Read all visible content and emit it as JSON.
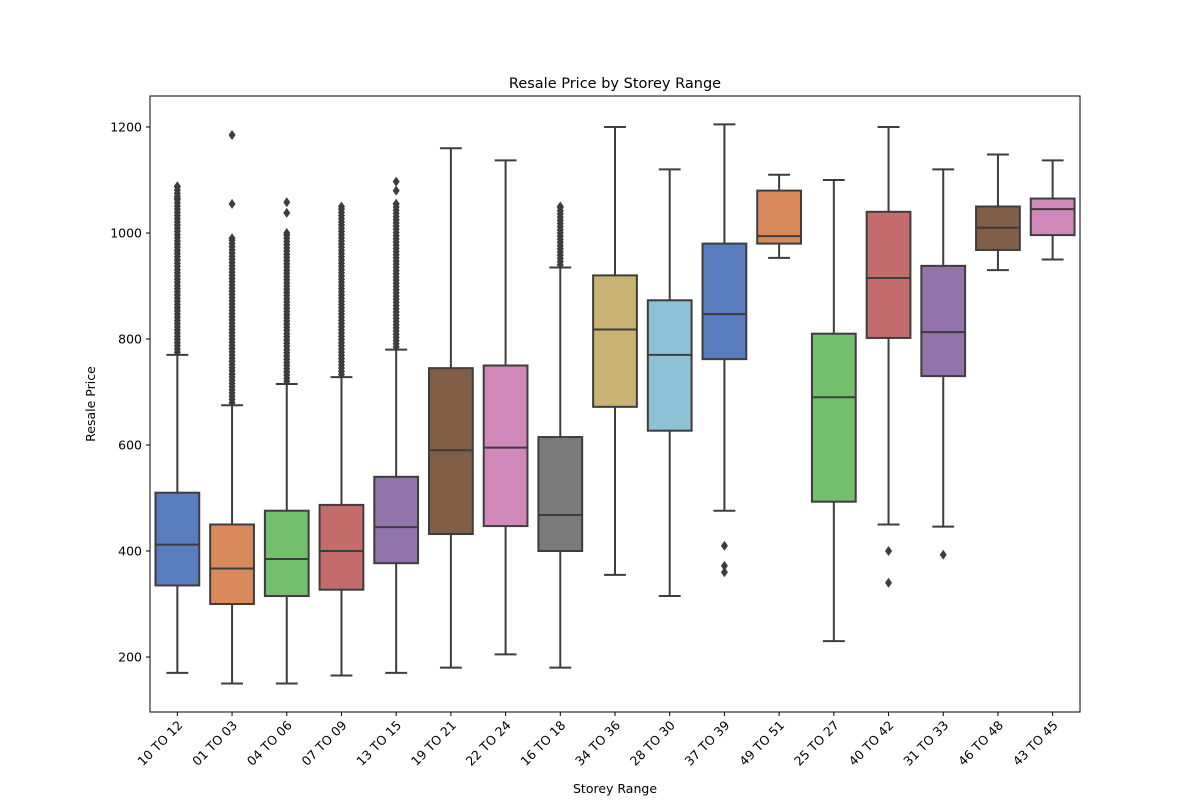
{
  "chart_data": {
    "type": "box",
    "title": "Resale Price by Storey Range",
    "xlabel": "Storey Range",
    "ylabel": "Resale Price",
    "ylim": [
      95,
      1258
    ],
    "yticks": [
      200,
      400,
      600,
      800,
      1000,
      1200
    ],
    "grid": false,
    "categories": [
      "10 TO 12",
      "01 TO 03",
      "04 TO 06",
      "07 TO 09",
      "13 TO 15",
      "19 TO 21",
      "22 TO 24",
      "16 TO 18",
      "34 TO 36",
      "28 TO 30",
      "37 TO 39",
      "49 TO 51",
      "25 TO 27",
      "40 TO 42",
      "31 TO 33",
      "46 TO 48",
      "43 TO 45"
    ],
    "boxes": [
      {
        "min": 170,
        "q1": 335,
        "median": 412,
        "q3": 510,
        "max": 770,
        "outlier_range": [
          775,
          1088
        ],
        "outliers": [
          1065,
          1088
        ],
        "color": "#5a7dbf"
      },
      {
        "min": 150,
        "q1": 300,
        "median": 367,
        "q3": 450,
        "max": 675,
        "outlier_range": [
          680,
          990
        ],
        "outliers": [
          1055,
          1185
        ],
        "color": "#d98a5c"
      },
      {
        "min": 150,
        "q1": 315,
        "median": 385,
        "q3": 476,
        "max": 715,
        "outlier_range": [
          720,
          1000
        ],
        "outliers": [
          1038,
          1058
        ],
        "color": "#73bf6e"
      },
      {
        "min": 165,
        "q1": 327,
        "median": 400,
        "q3": 487,
        "max": 728,
        "outlier_range": [
          733,
          1050
        ],
        "outliers": [],
        "color": "#c46c6c"
      },
      {
        "min": 170,
        "q1": 377,
        "median": 445,
        "q3": 540,
        "max": 780,
        "outlier_range": [
          785,
          1055
        ],
        "outliers": [
          1080,
          1097
        ],
        "color": "#9274ab"
      },
      {
        "min": 180,
        "q1": 432,
        "median": 590,
        "q3": 745,
        "max": 1160,
        "outlier_range": null,
        "outliers": [],
        "color": "#805f46"
      },
      {
        "min": 205,
        "q1": 447,
        "median": 595,
        "q3": 750,
        "max": 1137,
        "outlier_range": null,
        "outliers": [],
        "color": "#d088ba"
      },
      {
        "min": 180,
        "q1": 400,
        "median": 468,
        "q3": 615,
        "max": 935,
        "outlier_range": [
          940,
          1050
        ],
        "outliers": [],
        "color": "#7a7a7a"
      },
      {
        "min": 355,
        "q1": 672,
        "median": 818,
        "q3": 920,
        "max": 1200,
        "outlier_range": null,
        "outliers": [],
        "color": "#c8b274"
      },
      {
        "min": 315,
        "q1": 627,
        "median": 770,
        "q3": 873,
        "max": 1120,
        "outlier_range": null,
        "outliers": [],
        "color": "#8ec0d6"
      },
      {
        "min": 476,
        "q1": 762,
        "median": 847,
        "q3": 980,
        "max": 1205,
        "outlier_range": null,
        "outliers": [
          410,
          372,
          360
        ],
        "color": "#5a7dbf"
      },
      {
        "min": 953,
        "q1": 980,
        "median": 994,
        "q3": 1080,
        "max": 1110,
        "outlier_range": null,
        "outliers": [],
        "color": "#d98a5c"
      },
      {
        "min": 230,
        "q1": 493,
        "median": 690,
        "q3": 810,
        "max": 1100,
        "outlier_range": null,
        "outliers": [],
        "color": "#73bf6e"
      },
      {
        "min": 450,
        "q1": 802,
        "median": 915,
        "q3": 1040,
        "max": 1200,
        "outlier_range": null,
        "outliers": [
          400,
          340
        ],
        "color": "#c46c6c"
      },
      {
        "min": 446,
        "q1": 730,
        "median": 813,
        "q3": 938,
        "max": 1120,
        "outlier_range": null,
        "outliers": [
          393
        ],
        "color": "#9274ab"
      },
      {
        "min": 930,
        "q1": 968,
        "median": 1010,
        "q3": 1050,
        "max": 1148,
        "outlier_range": null,
        "outliers": [],
        "color": "#805f46"
      },
      {
        "min": 950,
        "q1": 996,
        "median": 1045,
        "q3": 1065,
        "max": 1137,
        "outlier_range": null,
        "outliers": [],
        "color": "#d088ba"
      }
    ],
    "line_color": "#3d3d3d"
  }
}
